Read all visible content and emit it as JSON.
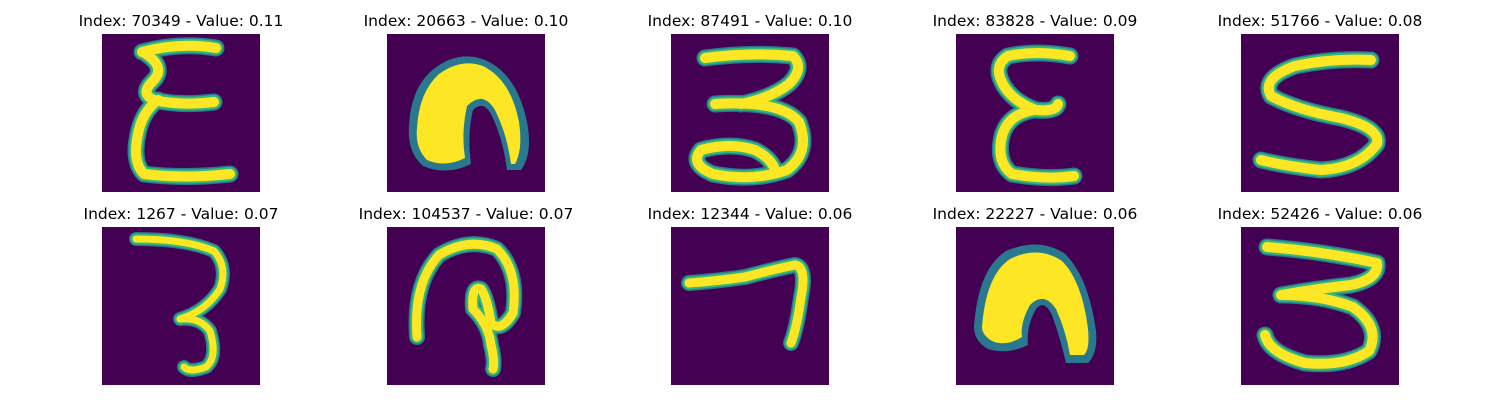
{
  "colormap": {
    "background": "#440154",
    "low": "#2a788e",
    "mid": "#35b779",
    "high": "#fde725"
  },
  "panels": [
    {
      "title": "Index: 70349 - Value: 0.11",
      "digit_icon": "handwritten-epsilon"
    },
    {
      "title": "Index: 20663 - Value: 0.10",
      "digit_icon": "handwritten-arch"
    },
    {
      "title": "Index: 87491 - Value: 0.10",
      "digit_icon": "handwritten-3"
    },
    {
      "title": "Index: 83828 - Value: 0.09",
      "digit_icon": "handwritten-epsilon"
    },
    {
      "title": "Index: 51766 - Value: 0.08",
      "digit_icon": "handwritten-s"
    },
    {
      "title": "Index: 1267 - Value: 0.07",
      "digit_icon": "handwritten-3"
    },
    {
      "title": "Index: 104537 - Value: 0.07",
      "digit_icon": "handwritten-loop"
    },
    {
      "title": "Index: 12344 - Value: 0.06",
      "digit_icon": "handwritten-7"
    },
    {
      "title": "Index: 22227 - Value: 0.06",
      "digit_icon": "handwritten-arch"
    },
    {
      "title": "Index: 52426 - Value: 0.06",
      "digit_icon": "handwritten-3"
    }
  ]
}
